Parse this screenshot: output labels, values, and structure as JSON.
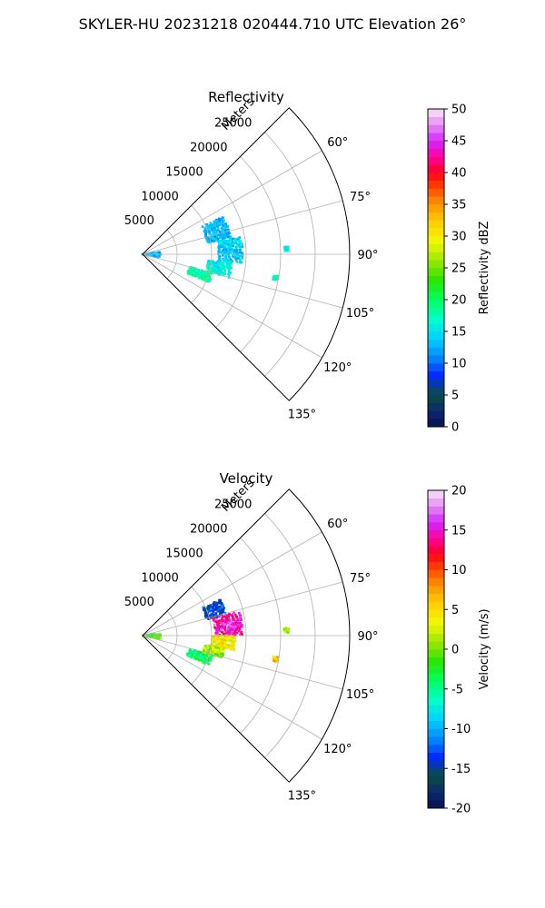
{
  "figure": {
    "suptitle": "SKYLER-HU  20231218  020444.710 UTC Elevation 26°"
  },
  "chart_data": [
    {
      "type": "heatmap",
      "projection": "polar-sector",
      "title": "Reflectivity",
      "radial_label": "Meters",
      "radial_ticks": [
        "5000",
        "10000",
        "15000",
        "20000",
        "25000"
      ],
      "azimuth_ticks": [
        "60°",
        "75°",
        "90°",
        "105°",
        "120°",
        "135°"
      ],
      "azimuth_range_deg": [
        45,
        135
      ],
      "range_max_m": 30000,
      "grid": true,
      "colorbar": {
        "label": "Reflectivity dBZ",
        "min": 0,
        "max": 50,
        "ticks": [
          "0",
          "5",
          "10",
          "15",
          "20",
          "25",
          "30",
          "35",
          "40",
          "45",
          "50"
        ]
      },
      "features": [
        {
          "az": [
            65,
            80
          ],
          "range": [
            9500,
            13000
          ],
          "value": 13
        },
        {
          "az": [
            80,
            95
          ],
          "range": [
            11000,
            14500
          ],
          "value": 14
        },
        {
          "az": [
            95,
            105
          ],
          "range": [
            9500,
            13000
          ],
          "value": 16
        },
        {
          "az": [
            105,
            113
          ],
          "range": [
            7000,
            10500
          ],
          "value": 18
        },
        {
          "az": [
            83,
            100
          ],
          "range": [
            0,
            2600
          ],
          "value": 13
        },
        {
          "az": [
            87,
            89
          ],
          "range": [
            20500,
            21200
          ],
          "value": 15
        },
        {
          "az": [
            99,
            101
          ],
          "range": [
            19200,
            19900
          ],
          "value": 18
        }
      ]
    },
    {
      "type": "heatmap",
      "projection": "polar-sector",
      "title": "Velocity",
      "radial_label": "Meters",
      "radial_ticks": [
        "5000",
        "10000",
        "15000",
        "20000",
        "25000"
      ],
      "azimuth_ticks": [
        "60°",
        "75°",
        "90°",
        "105°",
        "120°",
        "135°"
      ],
      "azimuth_range_deg": [
        45,
        135
      ],
      "range_max_m": 30000,
      "grid": true,
      "colorbar": {
        "label": "Velocity (m/s)",
        "min": -20,
        "max": 20,
        "ticks": [
          "-20",
          "-15",
          "-10",
          "-5",
          "0",
          "5",
          "10",
          "15",
          "20"
        ]
      },
      "features": [
        {
          "az": [
            65,
            76
          ],
          "range": [
            9500,
            12500
          ],
          "value": -14
        },
        {
          "az": [
            76,
            90
          ],
          "range": [
            10500,
            14500
          ],
          "value": 15
        },
        {
          "az": [
            90,
            99
          ],
          "range": [
            10000,
            13500
          ],
          "value": 4
        },
        {
          "az": [
            99,
            106
          ],
          "range": [
            9000,
            12000
          ],
          "value": 1
        },
        {
          "az": [
            106,
            114
          ],
          "range": [
            7000,
            10500
          ],
          "value": -4
        },
        {
          "az": [
            83,
            100
          ],
          "range": [
            0,
            2600
          ],
          "value": -2
        },
        {
          "az": [
            87,
            89
          ],
          "range": [
            20500,
            21200
          ],
          "value": 1
        },
        {
          "az": [
            99,
            101
          ],
          "range": [
            19200,
            19900
          ],
          "value": 6
        }
      ]
    }
  ]
}
